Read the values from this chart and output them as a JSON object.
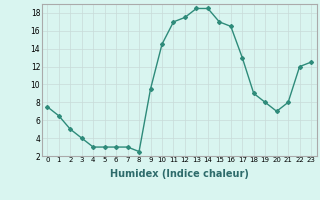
{
  "x": [
    0,
    1,
    2,
    3,
    4,
    5,
    6,
    7,
    8,
    9,
    10,
    11,
    12,
    13,
    14,
    15,
    16,
    17,
    18,
    19,
    20,
    21,
    22,
    23
  ],
  "y": [
    7.5,
    6.5,
    5.0,
    4.0,
    3.0,
    3.0,
    3.0,
    3.0,
    2.5,
    9.5,
    14.5,
    17.0,
    17.5,
    18.5,
    18.5,
    17.0,
    16.5,
    13.0,
    9.0,
    8.0,
    7.0,
    8.0,
    12.0,
    12.5
  ],
  "xlabel": "Humidex (Indice chaleur)",
  "ylim": [
    2,
    19
  ],
  "xlim": [
    -0.5,
    23.5
  ],
  "yticks": [
    2,
    4,
    6,
    8,
    10,
    12,
    14,
    16,
    18
  ],
  "xticks": [
    0,
    1,
    2,
    3,
    4,
    5,
    6,
    7,
    8,
    9,
    10,
    11,
    12,
    13,
    14,
    15,
    16,
    17,
    18,
    19,
    20,
    21,
    22,
    23
  ],
  "line_color": "#2e8b7a",
  "marker": "D",
  "marker_size": 2.0,
  "bg_color": "#d9f5f0",
  "grid_color": "#c8dbd8",
  "line_width": 1.0,
  "xlabel_fontsize": 7,
  "tick_fontsize_x": 5.0,
  "tick_fontsize_y": 5.5
}
